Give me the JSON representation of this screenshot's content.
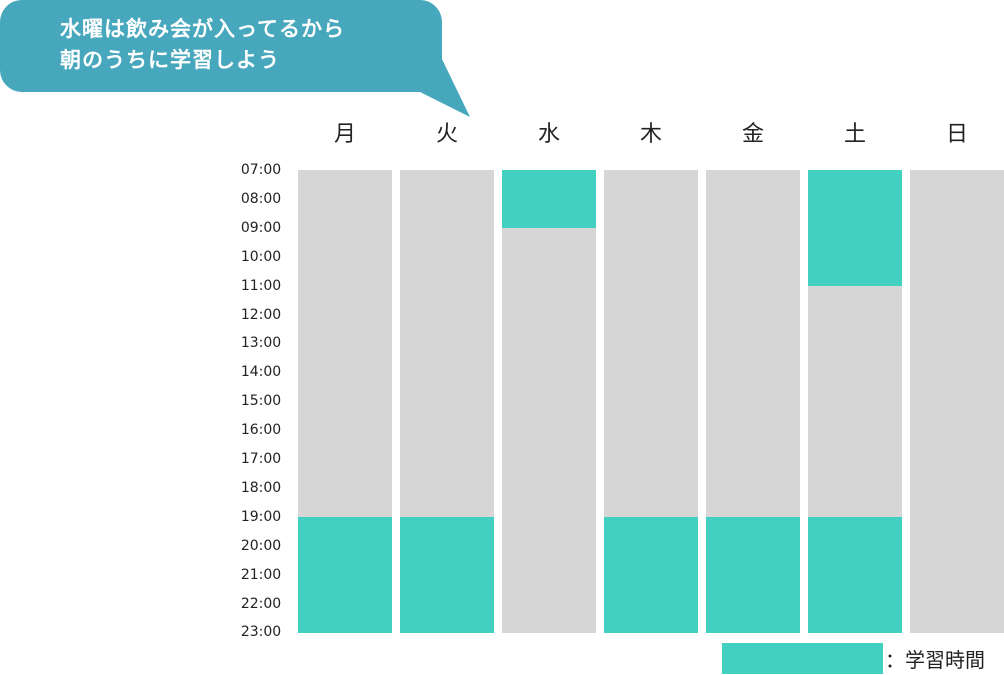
{
  "bubble": {
    "lines": [
      "水曜は飲み会が入ってるから",
      "朝のうちに学習しよう"
    ]
  },
  "days": [
    "月",
    "火",
    "水",
    "木",
    "金",
    "土",
    "日"
  ],
  "times": [
    "07:00",
    "08:00",
    "09:00",
    "10:00",
    "11:00",
    "12:00",
    "13:00",
    "14:00",
    "15:00",
    "16:00",
    "17:00",
    "18:00",
    "19:00",
    "20:00",
    "21:00",
    "22:00",
    "23:00"
  ],
  "schedule": [
    {
      "day": "月",
      "study": [
        [
          19,
          23
        ]
      ]
    },
    {
      "day": "火",
      "study": [
        [
          19,
          23
        ]
      ]
    },
    {
      "day": "水",
      "study": [
        [
          7,
          9
        ]
      ]
    },
    {
      "day": "木",
      "study": [
        [
          19,
          23
        ]
      ]
    },
    {
      "day": "金",
      "study": [
        [
          19,
          23
        ]
      ]
    },
    {
      "day": "土",
      "study": [
        [
          7,
          11
        ],
        [
          19,
          23
        ]
      ]
    },
    {
      "day": "日",
      "study": []
    }
  ],
  "legend": {
    "label": "：学習時間"
  },
  "colors": {
    "bubble": "#46a7bd",
    "study": "#42d1c0",
    "free": "#d6d6d6"
  }
}
